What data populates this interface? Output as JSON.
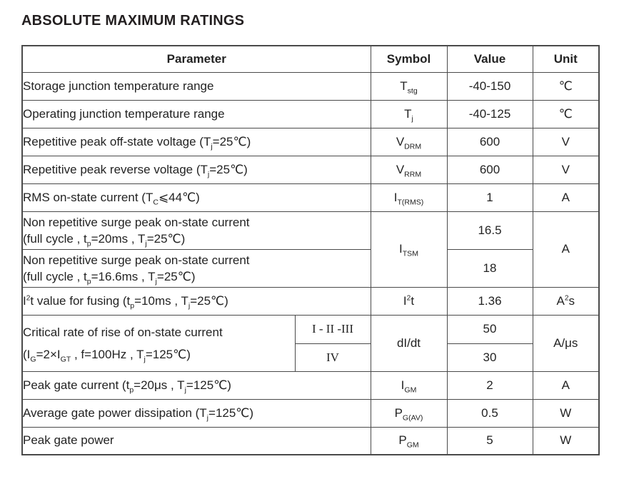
{
  "page": {
    "title": "ABSOLUTE MAXIMUM RATINGS"
  },
  "colors": {
    "border": "#4a4a4a",
    "text": "#232323",
    "title": "#231f20",
    "background": "#ffffff"
  },
  "table": {
    "headers": {
      "parameter": "Parameter",
      "symbol": "Symbol",
      "value": "Value",
      "unit": "Unit"
    },
    "rows": {
      "storage": {
        "parameter": "Storage junction temperature range",
        "symbol": "T~stg~",
        "value": "-40-150",
        "unit": "℃"
      },
      "operating": {
        "parameter": "Operating junction temperature range",
        "symbol": "T~j~",
        "value": "-40-125",
        "unit": "℃"
      },
      "vdrm": {
        "parameter": "Repetitive peak off-state voltage (T~j~=25℃)",
        "symbol": "V~DRM~",
        "value": "600",
        "unit": "V"
      },
      "vrrm": {
        "parameter": "Repetitive peak reverse voltage (T~j~=25℃)",
        "symbol": "V~RRM~",
        "value": "600",
        "unit": "V"
      },
      "itrms": {
        "parameter": "RMS on-state current (T~C~⩽44℃)",
        "symbol": "I~T(RMS)~",
        "value": "1",
        "unit": "A"
      },
      "surge20": {
        "parameter_line1": "Non repetitive surge peak on-state current",
        "parameter_line2": "(full cycle , t~p~=20ms , T~j~=25℃)",
        "symbol": "I~TSM~",
        "value": "16.5",
        "unit": "A"
      },
      "surge166": {
        "parameter_line1": "Non repetitive surge peak on-state current",
        "parameter_line2": "(full cycle , t~p~=16.6ms , T~j~=25℃)",
        "value": "18"
      },
      "i2t": {
        "parameter": "I^2^t value for fusing (t~p~=10ms , T~j~=25℃)",
        "symbol": "I^2^t",
        "value": "1.36",
        "unit": "A^2^s"
      },
      "didt": {
        "parameter_line1": "Critical rate of rise of on-state current",
        "parameter_line2": "(I~G~=2×I~GT~ , f=100Hz , T~j~=125℃)",
        "class_group_1": "I - II -III",
        "class_group_2": "IV",
        "symbol": "dI/dt",
        "value_class_1": "50",
        "value_class_2": "30",
        "unit": "A/μs"
      },
      "igm": {
        "parameter": "Peak gate current (t~p~=20μs , T~j~=125℃)",
        "symbol": "I~GM~",
        "value": "2",
        "unit": "A"
      },
      "pgav": {
        "parameter": "Average gate power dissipation (T~j~=125℃)",
        "symbol": "P~G(AV)~",
        "value": "0.5",
        "unit": "W"
      },
      "pgm": {
        "parameter": "Peak gate power",
        "symbol": "P~GM~",
        "value": "5",
        "unit": "W"
      }
    }
  }
}
